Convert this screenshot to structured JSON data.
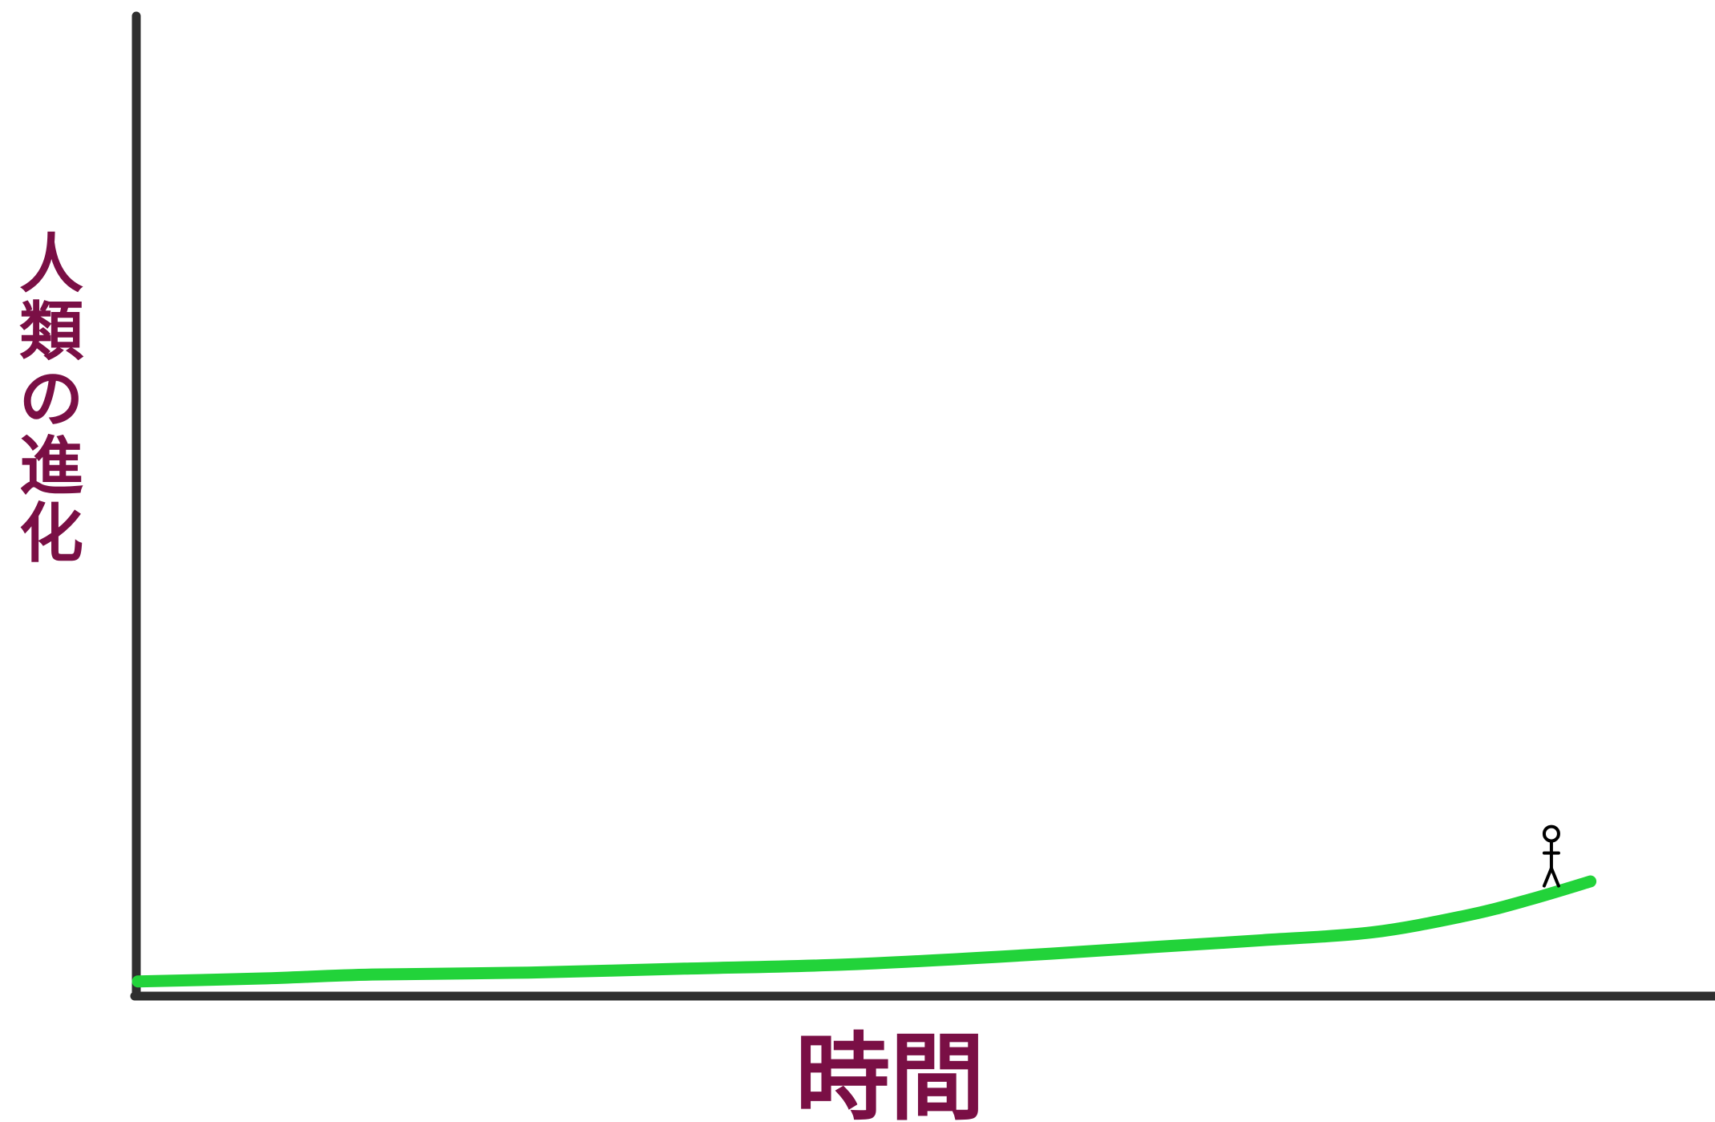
{
  "chart_data": {
    "type": "line",
    "title": "",
    "xlabel": "時間",
    "ylabel": "人類の進化",
    "grid": false,
    "legend": "none",
    "colors": {
      "axis": "#2f2f2f",
      "line": "#22d33a",
      "label": "#7a0f45",
      "figure": "#000000"
    },
    "xlim": [
      0,
      1
    ],
    "ylim": [
      0,
      1
    ],
    "series": [
      {
        "x": [
          0.0,
          0.08,
          0.15,
          0.25,
          0.35,
          0.45,
          0.55,
          0.65,
          0.72,
          0.79,
          0.85,
          0.89,
          0.93
        ],
        "values": [
          0.015,
          0.018,
          0.022,
          0.024,
          0.028,
          0.032,
          0.04,
          0.05,
          0.057,
          0.065,
          0.082,
          0.098,
          0.117
        ]
      }
    ],
    "annotations": [
      {
        "type": "stick-figure-icon",
        "x": 0.905,
        "y": 0.11
      }
    ]
  }
}
